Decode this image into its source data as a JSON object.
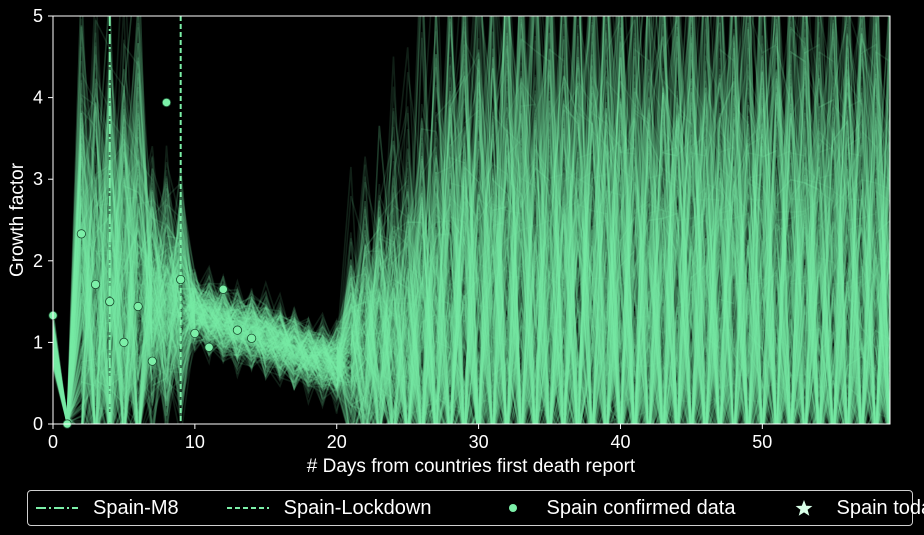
{
  "colors": {
    "background": "#000000",
    "series": "#7cf0a8",
    "axes": "#ffffff"
  },
  "chart_data": {
    "type": "line",
    "title": "",
    "xlabel": "# Days from countries first death report",
    "ylabel": "Growth factor",
    "xlim": [
      0,
      59
    ],
    "ylim": [
      0,
      5
    ],
    "x_ticks": [
      0,
      10,
      20,
      30,
      40,
      50
    ],
    "y_ticks": [
      0,
      1,
      2,
      3,
      4,
      5
    ],
    "grid": false,
    "legend_position": "bottom, outside plot",
    "vlines": [
      {
        "name": "Spain-M8",
        "x": 4,
        "style": "dashdot"
      },
      {
        "name": "Spain-Lockdown",
        "x": 9,
        "style": "dashed"
      }
    ],
    "simulated_trajectories": {
      "count": 300,
      "note_visible": "dense band of semi-transparent simulated growth-factor lines"
    },
    "series": [
      {
        "name": "Spain confirmed data",
        "type": "scatter",
        "x": [
          0,
          1,
          2,
          3,
          4,
          5,
          6,
          7,
          8,
          9,
          10,
          11,
          12,
          13,
          14
        ],
        "y": [
          1.33,
          0.0,
          2.33,
          1.71,
          1.5,
          1.0,
          1.44,
          0.77,
          3.94,
          1.77,
          1.11,
          0.94,
          1.65,
          1.15,
          1.05
        ]
      }
    ],
    "legend": [
      {
        "label": "Spain-M8",
        "marker": "dashdot-line"
      },
      {
        "label": "Spain-Lockdown",
        "marker": "dashed-line"
      },
      {
        "label": "Spain confirmed data",
        "marker": "circle"
      },
      {
        "label": "Spain today",
        "marker": "star"
      }
    ]
  }
}
